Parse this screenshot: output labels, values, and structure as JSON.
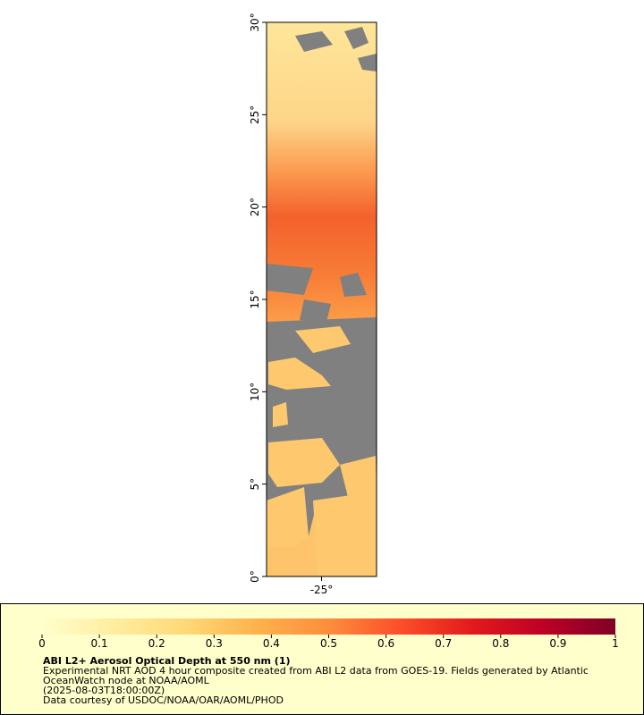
{
  "map": {
    "ylim": [
      0,
      30
    ],
    "yticks": [
      {
        "value": 30,
        "label": "30°"
      },
      {
        "value": 25,
        "label": "25°"
      },
      {
        "value": 20,
        "label": "20°"
      },
      {
        "value": 15,
        "label": "15°"
      },
      {
        "value": 10,
        "label": "10°"
      },
      {
        "value": 5,
        "label": "5°"
      },
      {
        "value": 0,
        "label": "0°"
      }
    ],
    "xlim": [
      -28,
      -22
    ],
    "xticks": [
      {
        "value": -25,
        "label": "-25°"
      }
    ]
  },
  "legend": {
    "colorbar": {
      "lim": [
        0,
        1
      ],
      "ticks": [
        0,
        0.1,
        0.2,
        0.3,
        0.4,
        0.5,
        0.6,
        0.7,
        0.8,
        0.9,
        1
      ],
      "colors": [
        "#ffffcc",
        "#ffeda0",
        "#fed976",
        "#feb24c",
        "#fd8d3c",
        "#fc4e2a",
        "#e31a1c",
        "#bd0026",
        "#800026"
      ]
    },
    "title": "ABI L2+ Aerosol Optical Depth at 550 nm (1)",
    "lines": [
      "Experimental NRT AOD 4 hour composite created from ABI L2 data from GOES-19. Fields generated by Atlantic",
      "OceanWatch node at NOAA/AOML",
      "(2025-08-03T18:00:00Z)",
      "Data courtesy of USDOC/NOAA/OAR/AOML/PHOD"
    ]
  }
}
